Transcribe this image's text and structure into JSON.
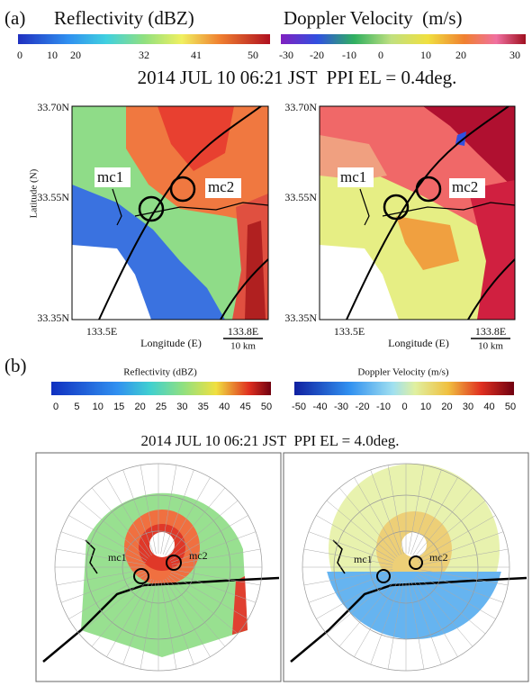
{
  "panel_a": {
    "label": "(a)",
    "reflectivity_scale": {
      "title": "Reflectivity (dBZ)",
      "ticks": [
        0,
        10,
        20,
        32,
        41,
        50
      ]
    },
    "velocity_scale": {
      "title": "Doppler Velocity  (m/s)",
      "ticks": [
        -30,
        -20,
        -10,
        0,
        10,
        20,
        30
      ]
    },
    "title": "2014 JUL 10 06:21 JST  PPI EL = 0.4deg.",
    "maps": [
      {
        "lat_ticks": [
          "33.70N",
          "33.55N",
          "33.35N"
        ],
        "lon_ticks": [
          "133.5E",
          "133.8E"
        ],
        "y_label": "Latitude (N)",
        "x_label": "Longitude (E)",
        "scale_bar": "10 km",
        "markers": [
          "mc1",
          "mc2"
        ]
      },
      {
        "lat_ticks": [
          "33.70N",
          "33.55N",
          "33.35N"
        ],
        "lon_ticks": [
          "133.5E",
          "133.8E"
        ],
        "x_label": "Longitude (E)",
        "scale_bar": "10 km",
        "markers": [
          "mc1",
          "mc2"
        ]
      }
    ]
  },
  "panel_b": {
    "label": "(b)",
    "reflectivity_scale": {
      "title": "Reflectivity (dBZ)",
      "ticks": [
        0,
        5,
        10,
        15,
        20,
        25,
        30,
        35,
        40,
        45,
        50
      ]
    },
    "velocity_scale": {
      "title": "Doppler Velocity (m/s)",
      "ticks": [
        -50,
        -40,
        -30,
        -20,
        -10,
        0,
        10,
        20,
        30,
        40,
        50
      ]
    },
    "title": "2014 JUL 10 06:21 JST  PPI EL = 4.0deg.",
    "scans": [
      {
        "markers": [
          "mc1",
          "mc2"
        ]
      },
      {
        "markers": [
          "mc1",
          "mc2"
        ]
      }
    ]
  }
}
